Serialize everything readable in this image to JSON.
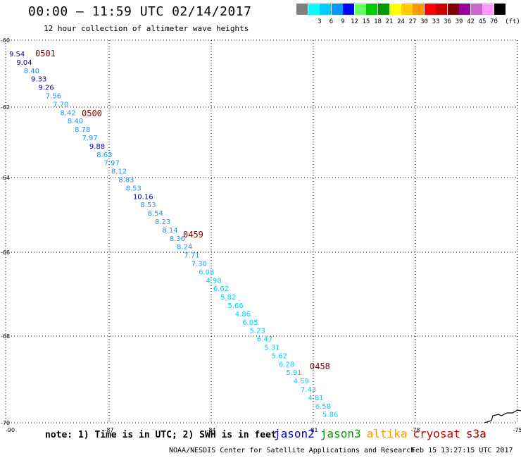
{
  "title": "00:00 – 11:59 UTC 02/14/2017",
  "subtitle": "12 hour collection of altimeter wave heights",
  "colorbar": {
    "unit": "(ft)",
    "bins": [
      {
        "label": "",
        "color": "#808080"
      },
      {
        "label": "3",
        "color": "#00ffff"
      },
      {
        "label": "6",
        "color": "#00ccff"
      },
      {
        "label": "9",
        "color": "#0099ff"
      },
      {
        "label": "12",
        "color": "#0000ff"
      },
      {
        "label": "15",
        "color": "#66ff66"
      },
      {
        "label": "18",
        "color": "#00cc00"
      },
      {
        "label": "21",
        "color": "#009900"
      },
      {
        "label": "24",
        "color": "#ffff00"
      },
      {
        "label": "27",
        "color": "#ffcc00"
      },
      {
        "label": "30",
        "color": "#ff9900"
      },
      {
        "label": "33",
        "color": "#ff0000"
      },
      {
        "label": "36",
        "color": "#cc0000"
      },
      {
        "label": "39",
        "color": "#800000"
      },
      {
        "label": "42",
        "color": "#990099"
      },
      {
        "label": "45",
        "color": "#cc66cc"
      },
      {
        "label": "70",
        "color": "#ff99ff"
      },
      {
        "label": "",
        "color": "#000000"
      }
    ]
  },
  "map": {
    "lon_range": [
      -90,
      -75
    ],
    "lat_range": [
      -60,
      -70
    ],
    "x_ticks": [
      "-90",
      "-87",
      "-84",
      "-81",
      "-78",
      "-75"
    ],
    "y_ticks": [
      "-60",
      "-62",
      "-64",
      "-66",
      "-68",
      "-70"
    ]
  },
  "track": {
    "times": [
      {
        "label": "0501",
        "color": "#800000"
      },
      {
        "label": "0500",
        "color": "#800000"
      },
      {
        "label": "0459",
        "color": "#800000"
      },
      {
        "label": "0458",
        "color": "#800000"
      }
    ],
    "values": [
      {
        "v": "9.54",
        "color": "#0000aa"
      },
      {
        "v": "9.04",
        "color": "#0000aa"
      },
      {
        "v": "8.40",
        "color": "#1e90ff"
      },
      {
        "v": "9.33",
        "color": "#0000aa"
      },
      {
        "v": "9.26",
        "color": "#0000aa"
      },
      {
        "v": "7.56",
        "color": "#1e90ff"
      },
      {
        "v": "7.70",
        "color": "#1e90ff"
      },
      {
        "v": "8.42",
        "color": "#1e90ff"
      },
      {
        "v": "8.40",
        "color": "#1e90ff"
      },
      {
        "v": "8.78",
        "color": "#1e90ff"
      },
      {
        "v": "7.97",
        "color": "#1e90ff"
      },
      {
        "v": "9.88",
        "color": "#0000aa"
      },
      {
        "v": "8.63",
        "color": "#1e90ff"
      },
      {
        "v": "7.97",
        "color": "#1e90ff"
      },
      {
        "v": "8.12",
        "color": "#1e90ff"
      },
      {
        "v": "8.83",
        "color": "#1e90ff"
      },
      {
        "v": "8.53",
        "color": "#1e90ff"
      },
      {
        "v": "10.16",
        "color": "#0000aa"
      },
      {
        "v": "8.53",
        "color": "#1e90ff"
      },
      {
        "v": "8.54",
        "color": "#1e90ff"
      },
      {
        "v": "8.23",
        "color": "#1e90ff"
      },
      {
        "v": "8.14",
        "color": "#1e90ff"
      },
      {
        "v": "8.36",
        "color": "#1e90ff"
      },
      {
        "v": "8.24",
        "color": "#1e90ff"
      },
      {
        "v": "7.71",
        "color": "#1e90ff"
      },
      {
        "v": "7.30",
        "color": "#1e90ff"
      },
      {
        "v": "6.08",
        "color": "#00ccff"
      },
      {
        "v": "4.98",
        "color": "#00ccff"
      },
      {
        "v": "6.62",
        "color": "#00ccff"
      },
      {
        "v": "5.82",
        "color": "#00ccff"
      },
      {
        "v": "5.66",
        "color": "#00ccff"
      },
      {
        "v": "4.86",
        "color": "#00ccff"
      },
      {
        "v": "6.05",
        "color": "#00ccff"
      },
      {
        "v": "5.23",
        "color": "#00ccff"
      },
      {
        "v": "6.47",
        "color": "#00ccff"
      },
      {
        "v": "5.31",
        "color": "#00ccff"
      },
      {
        "v": "5.62",
        "color": "#00ccff"
      },
      {
        "v": "6.28",
        "color": "#00ccff"
      },
      {
        "v": "5.91",
        "color": "#00ccff"
      },
      {
        "v": "4.59",
        "color": "#00ccff"
      },
      {
        "v": "7.43",
        "color": "#00ccff"
      },
      {
        "v": "4.81",
        "color": "#00ccff"
      },
      {
        "v": "6.58",
        "color": "#00ccff"
      },
      {
        "v": "5.86",
        "color": "#00ccff"
      }
    ]
  },
  "note": "note: 1) Time is in UTC; 2) SWH is in feet",
  "legend": [
    {
      "name": "jason2",
      "color": "#0000cc"
    },
    {
      "name": "jason3",
      "color": "#009900"
    },
    {
      "name": "altika",
      "color": "#ff9900"
    },
    {
      "name": "cryosat",
      "color": "#cc0000"
    },
    {
      "name": "s3a",
      "color": "#990000"
    }
  ],
  "credit": "NOAA/NESDIS Center for Satellite Applications and Research",
  "timestamp": "Feb 15 13:27:15 UTC 2017"
}
